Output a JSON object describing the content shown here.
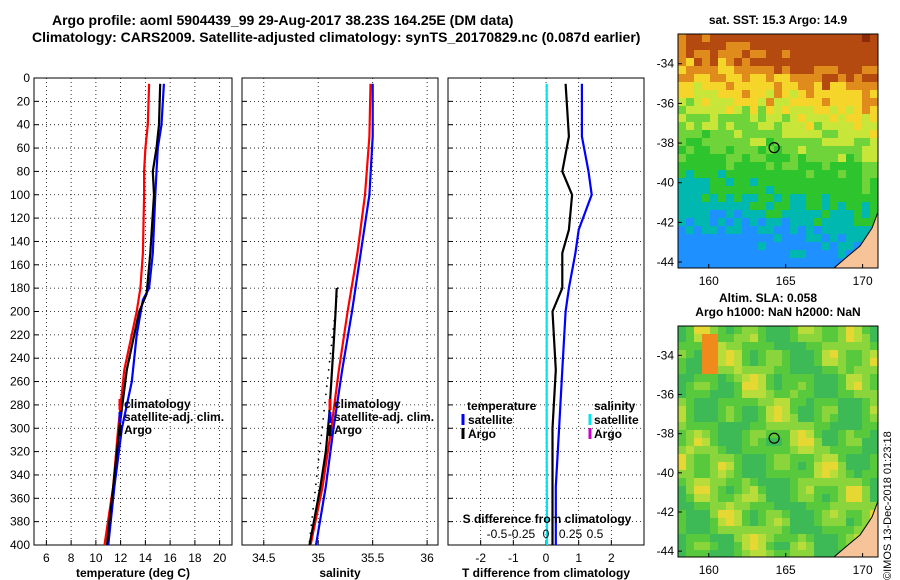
{
  "title_line1": "Argo profile: aoml 5904439_99 29-Aug-2017 38.23S 164.25E (DM data)",
  "title_line2": "Climatology: CARS2009. Satellite-adjusted climatology: synTS_20170829.nc (0.087d earlier)",
  "stamp": "©IMOS 13-Dec-2018 01:23:18",
  "colors": {
    "climatology": "#ff0000",
    "satellite": "#0000ff",
    "argo": "#000000",
    "sat_salinity": "#00e5ee",
    "argo_salinity": "#cc00cc"
  },
  "chart_data": [
    {
      "type": "line",
      "id": "temperature",
      "xlabel": "temperature (deg C)",
      "ylabel": "",
      "xlim": [
        5,
        21
      ],
      "ylim": [
        0,
        400
      ],
      "xticks": [
        6,
        8,
        10,
        12,
        14,
        16,
        18,
        20
      ],
      "yticks": [
        0,
        20,
        40,
        60,
        80,
        100,
        120,
        140,
        160,
        180,
        200,
        220,
        240,
        260,
        280,
        300,
        320,
        340,
        360,
        380,
        400
      ],
      "legend": [
        "climatology",
        "satellite-adj. clim.",
        "Argo"
      ],
      "series": [
        {
          "name": "climatology",
          "color": "#ff0000",
          "depth": [
            5,
            40,
            60,
            80,
            100,
            150,
            180,
            200,
            250,
            300,
            350,
            400
          ],
          "values": [
            14.3,
            14.2,
            14.0,
            13.9,
            13.9,
            13.8,
            13.6,
            13.3,
            12.3,
            11.8,
            11.4,
            10.7
          ]
        },
        {
          "name": "satellite-adj. clim.",
          "color": "#0000ff",
          "depth": [
            5,
            40,
            60,
            80,
            100,
            150,
            180,
            190,
            220,
            260,
            300,
            350,
            400
          ],
          "values": [
            15.5,
            15.3,
            15.0,
            14.9,
            14.8,
            14.6,
            14.3,
            13.8,
            13.3,
            12.9,
            12.1,
            11.5,
            11.0
          ]
        },
        {
          "name": "Argo",
          "color": "#000000",
          "depth": [
            5,
            40,
            60,
            80,
            100,
            150,
            185,
            200,
            250,
            300,
            350,
            400
          ],
          "values": [
            15.2,
            15.1,
            14.9,
            14.6,
            14.7,
            14.4,
            14.1,
            13.5,
            12.5,
            11.9,
            11.4,
            10.9
          ]
        }
      ]
    },
    {
      "type": "line",
      "id": "salinity",
      "xlabel": "salinity",
      "ylabel": "",
      "xlim": [
        34.3,
        36.1
      ],
      "ylim": [
        0,
        400
      ],
      "xticks": [
        34.5,
        35,
        35.5,
        36
      ],
      "legend": [
        "climatology",
        "satellite-adj. clim.",
        "Argo"
      ],
      "series": [
        {
          "name": "climatology",
          "color": "#ff0000",
          "depth": [
            5,
            50,
            100,
            150,
            200,
            250,
            300,
            350,
            400
          ],
          "values": [
            35.48,
            35.47,
            35.43,
            35.36,
            35.27,
            35.19,
            35.12,
            35.04,
            34.93
          ]
        },
        {
          "name": "satellite-adj. clim.",
          "color": "#0000ff",
          "depth": [
            5,
            50,
            100,
            150,
            200,
            250,
            300,
            350,
            400
          ],
          "values": [
            35.5,
            35.5,
            35.47,
            35.39,
            35.31,
            35.22,
            35.14,
            35.07,
            34.98
          ]
        },
        {
          "name": "Argo",
          "color": "#000000",
          "depth": [
            180,
            200,
            230,
            260,
            290,
            320,
            350,
            400
          ],
          "values": [
            35.17,
            35.16,
            35.14,
            35.12,
            35.1,
            35.07,
            35.02,
            34.92
          ]
        }
      ]
    },
    {
      "type": "line",
      "id": "difference",
      "xlabel": "T difference from climatology",
      "ylabel": "",
      "xlim": [
        -3,
        3
      ],
      "ylim": [
        0,
        400
      ],
      "xticks": [
        -2,
        -1,
        0,
        1,
        2
      ],
      "top_label": "S difference from climatology",
      "s_ticks": [
        -0.5,
        -0.25,
        0,
        0.25,
        0.5
      ],
      "legend_temperature": {
        "title": "temperature",
        "items": [
          "satellite",
          "Argo"
        ]
      },
      "legend_salinity": {
        "title": "salinity",
        "items": [
          "satellite",
          "Argo"
        ]
      },
      "series": [
        {
          "name": "T satellite",
          "color": "#0000ff",
          "depth": [
            5,
            50,
            80,
            100,
            130,
            150,
            180,
            200,
            250,
            300,
            350,
            400
          ],
          "values": [
            1.1,
            1.1,
            1.3,
            1.4,
            1.0,
            0.9,
            0.7,
            0.6,
            0.5,
            0.4,
            0.3,
            0.3
          ]
        },
        {
          "name": "T Argo",
          "color": "#000000",
          "depth": [
            5,
            50,
            80,
            100,
            130,
            150,
            180,
            200,
            250,
            300,
            350,
            400
          ],
          "values": [
            0.6,
            0.7,
            0.5,
            0.8,
            0.7,
            0.5,
            0.5,
            0.2,
            0.3,
            0.2,
            0.2,
            0.2
          ]
        },
        {
          "name": "S satellite",
          "color": "#00e5ee",
          "depth": [
            5,
            100,
            200,
            300,
            400
          ],
          "values": [
            0.02,
            0.03,
            0.02,
            0.02,
            0.03
          ]
        }
      ]
    }
  ],
  "maps": [
    {
      "id": "sst-map",
      "title": "sat. SST: 15.3 Argo: 14.9",
      "xticks": [
        160,
        165,
        170
      ],
      "yticks": [
        -34,
        -36,
        -38,
        -40,
        -42,
        -44
      ],
      "xlim": [
        158,
        171
      ],
      "ylim": [
        -44.3,
        -32.5
      ],
      "argo_position": {
        "lon": 164.25,
        "lat": -38.23
      }
    },
    {
      "id": "sla-map",
      "title_line1": "Altim. SLA: 0.058",
      "title_line2": "Argo h1000: NaN h2000: NaN",
      "xticks": [
        160,
        165,
        170
      ],
      "yticks": [
        -34,
        -36,
        -38,
        -40,
        -42,
        -44
      ],
      "xlim": [
        158,
        171
      ],
      "ylim": [
        -44.3,
        -32.5
      ],
      "argo_position": {
        "lon": 164.25,
        "lat": -38.23
      }
    }
  ]
}
